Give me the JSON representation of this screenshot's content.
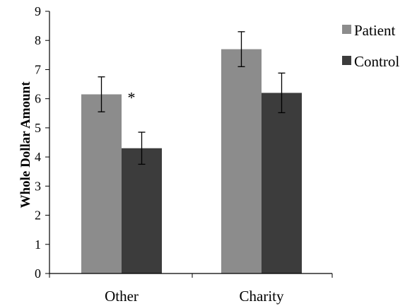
{
  "chart_data": {
    "type": "bar",
    "title": "",
    "xlabel": "",
    "ylabel": "Whole Dollar Amount",
    "ylim": [
      0,
      9
    ],
    "yticks": [
      0,
      1,
      2,
      3,
      4,
      5,
      6,
      7,
      8,
      9
    ],
    "grid": false,
    "legend_position": "top-right",
    "categories": [
      "Other",
      "Charity"
    ],
    "series": [
      {
        "name": "Patient",
        "color": "#8c8c8c",
        "values": [
          6.15,
          7.7
        ],
        "error": [
          0.6,
          0.6
        ]
      },
      {
        "name": "Control",
        "color": "#3c3c3c",
        "values": [
          4.3,
          6.2
        ],
        "error": [
          0.55,
          0.68
        ]
      }
    ],
    "annotations": [
      {
        "text": "*",
        "category": "Other"
      }
    ]
  }
}
